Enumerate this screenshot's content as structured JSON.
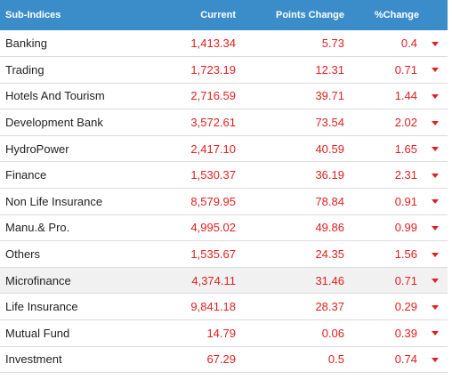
{
  "header": {
    "name": "Sub-Indices",
    "current": "Current",
    "points": "Points Change",
    "pct": "%Change"
  },
  "colors": {
    "header_bg": "#3a8dc8",
    "negative": "#e02020"
  },
  "rows": [
    {
      "name": "Banking",
      "current": "1,413.34",
      "points": "5.73",
      "pct": "0.4",
      "trend_icon": "caret-down-icon"
    },
    {
      "name": "Trading",
      "current": "1,723.19",
      "points": "12.31",
      "pct": "0.71",
      "trend_icon": "caret-down-icon"
    },
    {
      "name": "Hotels And Tourism",
      "current": "2,716.59",
      "points": "39.71",
      "pct": "1.44",
      "trend_icon": "caret-down-icon"
    },
    {
      "name": "Development Bank",
      "current": "3,572.61",
      "points": "73.54",
      "pct": "2.02",
      "trend_icon": "caret-down-icon"
    },
    {
      "name": "HydroPower",
      "current": "2,417.10",
      "points": "40.59",
      "pct": "1.65",
      "trend_icon": "caret-down-icon"
    },
    {
      "name": "Finance",
      "current": "1,530.37",
      "points": "36.19",
      "pct": "2.31",
      "trend_icon": "caret-down-icon"
    },
    {
      "name": "Non Life Insurance",
      "current": "8,579.95",
      "points": "78.84",
      "pct": "0.91",
      "trend_icon": "caret-down-icon"
    },
    {
      "name": "Manu.& Pro.",
      "current": "4,995.02",
      "points": "49.86",
      "pct": "0.99",
      "trend_icon": "caret-down-icon"
    },
    {
      "name": "Others",
      "current": "1,535.67",
      "points": "24.35",
      "pct": "1.56",
      "trend_icon": "caret-down-icon"
    },
    {
      "name": "Microfinance",
      "current": "4,374.11",
      "points": "31.46",
      "pct": "0.71",
      "trend_icon": "caret-down-icon"
    },
    {
      "name": "Life Insurance",
      "current": "9,841.18",
      "points": "28.37",
      "pct": "0.29",
      "trend_icon": "caret-down-icon"
    },
    {
      "name": "Mutual Fund",
      "current": "14.79",
      "points": "0.06",
      "pct": "0.39",
      "trend_icon": "caret-down-icon"
    },
    {
      "name": "Investment",
      "current": "67.29",
      "points": "0.5",
      "pct": "0.74",
      "trend_icon": "caret-down-icon"
    }
  ]
}
